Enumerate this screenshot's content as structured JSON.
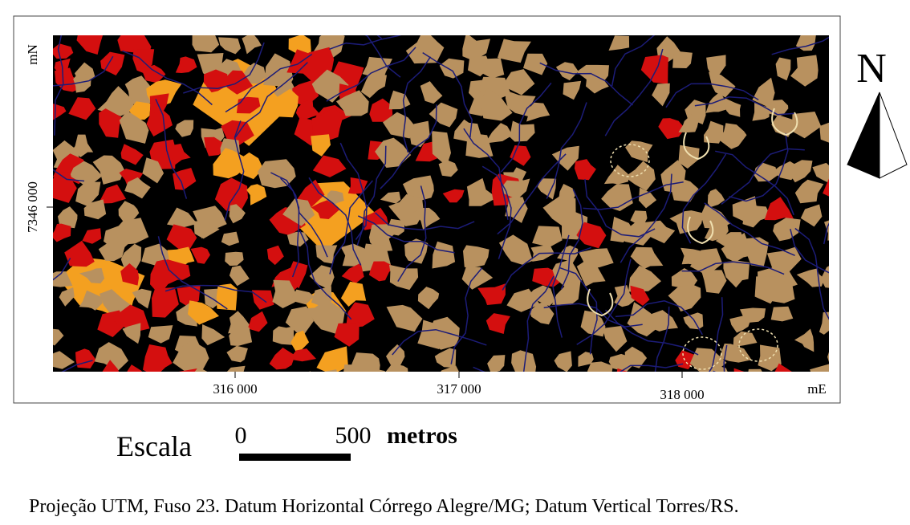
{
  "map": {
    "y_axis": {
      "unit": "mN",
      "labels": [
        "7346 000"
      ]
    },
    "x_axis": {
      "unit": "mE",
      "labels": [
        "316 000",
        "317 000",
        "318 000"
      ]
    },
    "north": "N",
    "scale": {
      "title": "Escala",
      "start": "0",
      "end": "500",
      "unit": "metros"
    },
    "caption": "Projeção UTM, Fuso 23. Datum Horizontal Córrego Alegre/MG; Datum Vertical Torres/RS."
  }
}
